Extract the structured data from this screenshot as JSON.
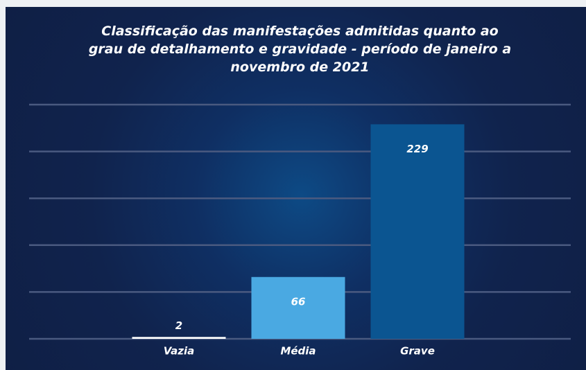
{
  "chart_data": {
    "type": "bar",
    "title": "Classificação das manifestações admitidas quanto ao grau de detalhamento e gravidade - período de janeiro a novembro de 2021",
    "categories": [
      "Vazia",
      "Média",
      "Grave"
    ],
    "values": [
      2,
      66,
      229
    ],
    "colors": [
      "#ffffff",
      "#4aa9e2",
      "#0b5591"
    ],
    "ylim": [
      0,
      250
    ],
    "yticks": [
      0,
      50,
      100,
      150,
      200,
      250
    ],
    "grid": true
  }
}
